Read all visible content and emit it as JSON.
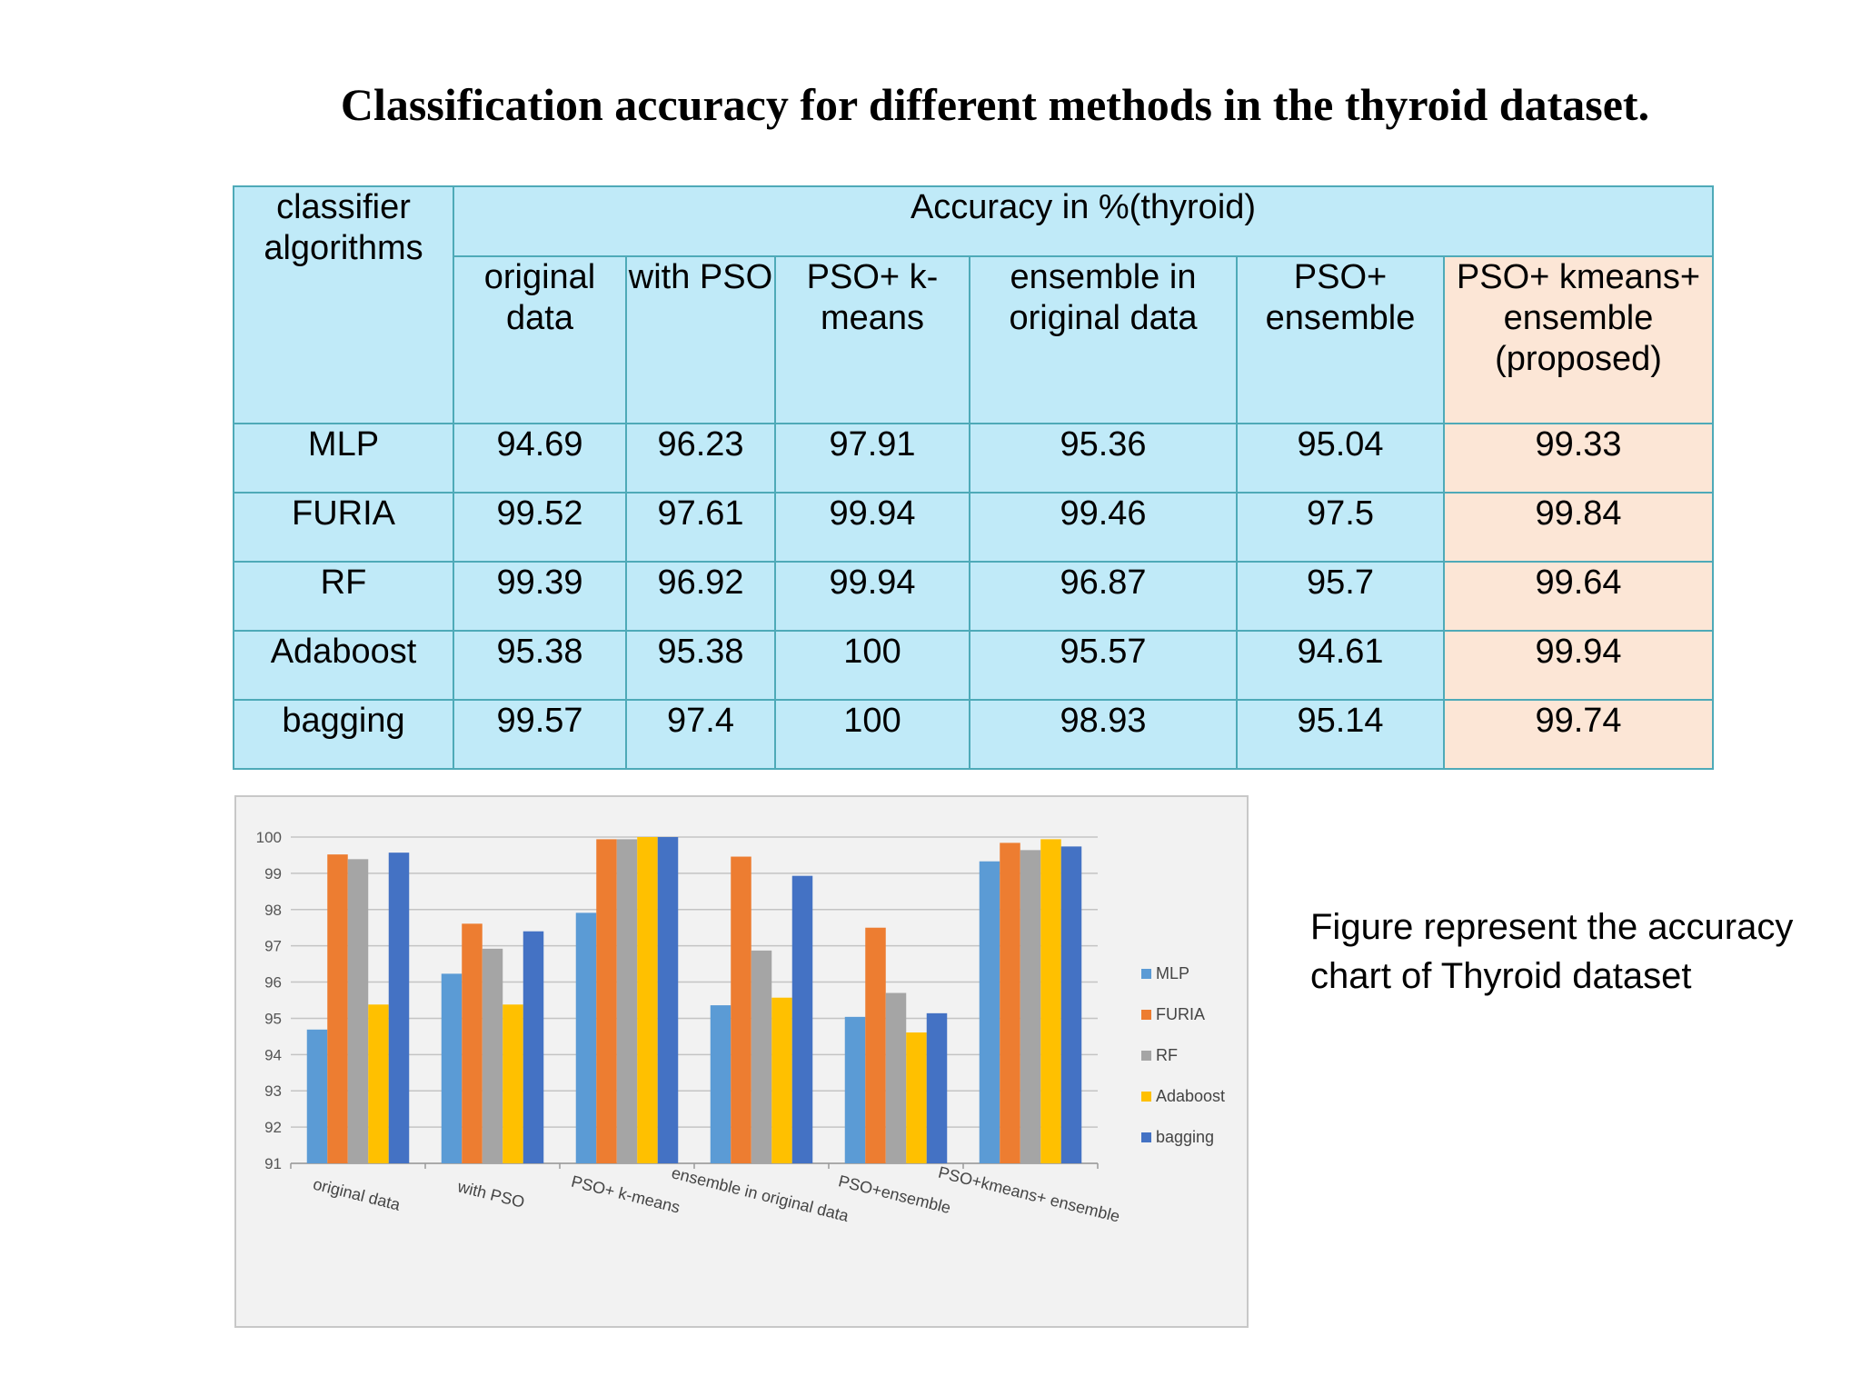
{
  "title": "Classification accuracy for different methods in the thyroid dataset.",
  "table": {
    "corner_header": "classifier algorithms",
    "group_header": "Accuracy in %(thyroid)",
    "columns": [
      "original data",
      "with PSO",
      "PSO+  k-means",
      "ensemble in original data",
      "PSO+ ensemble",
      "PSO+ kmeans+ ensemble (proposed)"
    ],
    "rows": [
      {
        "name": "MLP",
        "values": [
          "94.69",
          "96.23",
          "97.91",
          "95.36",
          "95.04",
          "99.33"
        ]
      },
      {
        "name": "FURIA",
        "values": [
          "99.52",
          "97.61",
          "99.94",
          "99.46",
          "97.5",
          "99.84"
        ]
      },
      {
        "name": "RF",
        "values": [
          "99.39",
          "96.92",
          "99.94",
          "96.87",
          "95.7",
          "99.64"
        ]
      },
      {
        "name": "Adaboost",
        "values": [
          "95.38",
          "95.38",
          "100",
          "95.57",
          "94.61",
          "99.94"
        ]
      },
      {
        "name": "bagging",
        "values": [
          "99.57",
          "97.4",
          "100",
          "98.93",
          "95.14",
          "99.74"
        ]
      }
    ]
  },
  "chart_data": {
    "type": "bar",
    "title": "",
    "xlabel": "",
    "ylabel": "",
    "categories": [
      "original data",
      "with PSO",
      "PSO+  k-means",
      "ensemble in original data",
      "PSO+ensemble",
      "PSO+kmeans+ ensemble"
    ],
    "series": [
      {
        "name": "MLP",
        "color": "#5b9bd5",
        "values": [
          94.69,
          96.23,
          97.91,
          95.36,
          95.04,
          99.33
        ]
      },
      {
        "name": "FURIA",
        "color": "#ed7d31",
        "values": [
          99.52,
          97.61,
          99.94,
          99.46,
          97.5,
          99.84
        ]
      },
      {
        "name": "RF",
        "color": "#a5a5a5",
        "values": [
          99.39,
          96.92,
          99.94,
          96.87,
          95.7,
          99.64
        ]
      },
      {
        "name": "Adaboost",
        "color": "#ffc000",
        "values": [
          95.38,
          95.38,
          100,
          95.57,
          94.61,
          99.94
        ]
      },
      {
        "name": "bagging",
        "color": "#4472c4",
        "values": [
          99.57,
          97.4,
          100,
          98.93,
          95.14,
          99.74
        ]
      }
    ],
    "ylim": [
      91,
      100
    ],
    "yticks": [
      91,
      92,
      93,
      94,
      95,
      96,
      97,
      98,
      99,
      100
    ],
    "grid": true,
    "legend_position": "right"
  },
  "caption": {
    "line1": "Figure represent  the accuracy",
    "line2": "chart of Thyroid dataset"
  }
}
